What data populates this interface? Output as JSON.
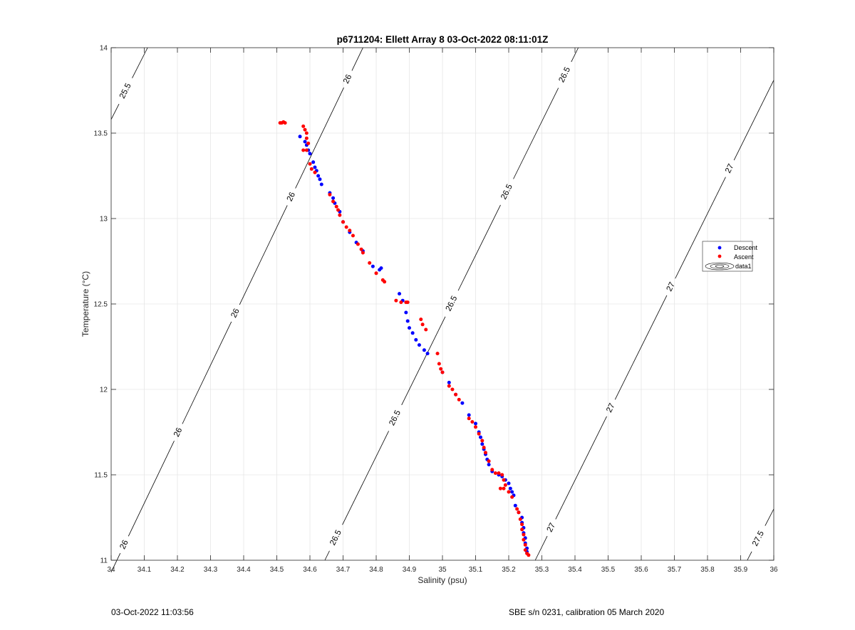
{
  "footer": {
    "left": "03-Oct-2022 11:03:56",
    "right": "SBE s/n 0231, calibration 05 March 2020"
  },
  "chart_data": {
    "type": "scatter",
    "title": "p6711204: Ellett Array 8 03-Oct-2022 08:11:01Z",
    "xlabel": "Salinity (psu)",
    "ylabel": "Temperature (°C)",
    "xlim": [
      34,
      36
    ],
    "ylim": [
      11,
      14
    ],
    "xticks": [
      "34",
      "34.1",
      "34.2",
      "34.3",
      "34.4",
      "34.5",
      "34.6",
      "34.7",
      "34.8",
      "34.9",
      "35",
      "35.1",
      "35.2",
      "35.3",
      "35.4",
      "35.5",
      "35.6",
      "35.7",
      "35.8",
      "35.9",
      "36"
    ],
    "yticks": [
      "11",
      "11.5",
      "12",
      "12.5",
      "13",
      "13.5",
      "14"
    ],
    "grid": true,
    "legend_placement": "right",
    "legend": [
      {
        "label": "Descent",
        "color": "#0000ff",
        "kind": "dot"
      },
      {
        "label": "Ascent",
        "color": "#ff0000",
        "kind": "dot"
      },
      {
        "label": "data1",
        "color": "#000000",
        "kind": "contour"
      }
    ],
    "isopycnals": [
      {
        "level": "25.5",
        "points": [
          [
            34.0,
            13.58
          ],
          [
            34.11,
            14.0
          ]
        ],
        "labels": [
          [
            34.04,
            13.75
          ]
        ]
      },
      {
        "level": "26",
        "points": [
          [
            34.0,
            10.93
          ],
          [
            34.76,
            14.0
          ]
        ],
        "labels": [
          [
            34.03,
            11.1
          ],
          [
            34.19,
            11.76
          ],
          [
            34.36,
            12.46
          ],
          [
            34.53,
            13.14
          ],
          [
            34.71,
            13.82
          ]
        ]
      },
      {
        "level": "26.5",
        "points": [
          [
            34.645,
            11.0
          ],
          [
            35.41,
            14.0
          ]
        ],
        "labels": [
          [
            34.68,
            11.13
          ],
          [
            34.86,
            11.83
          ],
          [
            35.03,
            12.5
          ],
          [
            35.19,
            13.16
          ],
          [
            35.37,
            13.84
          ]
        ]
      },
      {
        "level": "27",
        "points": [
          [
            35.28,
            11.0
          ],
          [
            36.0,
            13.81
          ]
        ],
        "labels": [
          [
            35.34,
            11.18
          ],
          [
            35.52,
            11.88
          ],
          [
            35.7,
            12.59
          ],
          [
            35.88,
            13.28
          ]
        ]
      },
      {
        "level": "27.5",
        "points": [
          [
            35.92,
            11.0
          ],
          [
            36.0,
            11.3
          ]
        ],
        "labels": [
          [
            35.96,
            11.12
          ]
        ]
      }
    ],
    "series": [
      {
        "name": "Descent",
        "color": "#0000ff",
        "points": [
          [
            34.57,
            13.48
          ],
          [
            34.585,
            13.45
          ],
          [
            34.59,
            13.43
          ],
          [
            34.595,
            13.4
          ],
          [
            34.6,
            13.38
          ],
          [
            34.61,
            13.33
          ],
          [
            34.615,
            13.3
          ],
          [
            34.62,
            13.28
          ],
          [
            34.625,
            13.25
          ],
          [
            34.63,
            13.23
          ],
          [
            34.635,
            13.2
          ],
          [
            34.66,
            13.15
          ],
          [
            34.67,
            13.12
          ],
          [
            34.675,
            13.09
          ],
          [
            34.69,
            13.04
          ],
          [
            34.7,
            12.98
          ],
          [
            34.72,
            12.92
          ],
          [
            34.74,
            12.86
          ],
          [
            34.76,
            12.81
          ],
          [
            34.79,
            12.72
          ],
          [
            34.81,
            12.7
          ],
          [
            34.815,
            12.71
          ],
          [
            34.87,
            12.56
          ],
          [
            34.88,
            12.52
          ],
          [
            34.89,
            12.45
          ],
          [
            34.895,
            12.4
          ],
          [
            34.9,
            12.36
          ],
          [
            34.91,
            12.33
          ],
          [
            34.92,
            12.29
          ],
          [
            34.93,
            12.26
          ],
          [
            34.945,
            12.23
          ],
          [
            34.955,
            12.21
          ],
          [
            35.0,
            12.1
          ],
          [
            35.02,
            12.04
          ],
          [
            35.04,
            11.97
          ],
          [
            35.06,
            11.92
          ],
          [
            35.08,
            11.85
          ],
          [
            35.1,
            11.8
          ],
          [
            35.11,
            11.75
          ],
          [
            35.115,
            11.72
          ],
          [
            35.12,
            11.68
          ],
          [
            35.125,
            11.65
          ],
          [
            35.13,
            11.62
          ],
          [
            35.135,
            11.59
          ],
          [
            35.14,
            11.56
          ],
          [
            35.15,
            11.52
          ],
          [
            35.17,
            11.5
          ],
          [
            35.18,
            11.49
          ],
          [
            35.19,
            11.47
          ],
          [
            35.2,
            11.45
          ],
          [
            35.205,
            11.42
          ],
          [
            35.21,
            11.4
          ],
          [
            35.215,
            11.38
          ],
          [
            35.22,
            11.32
          ],
          [
            35.23,
            11.28
          ],
          [
            35.24,
            11.25
          ],
          [
            35.24,
            11.22
          ],
          [
            35.245,
            11.19
          ],
          [
            35.245,
            11.16
          ],
          [
            35.25,
            11.13
          ],
          [
            35.25,
            11.1
          ],
          [
            35.255,
            11.07
          ],
          [
            35.255,
            11.05
          ]
        ]
      },
      {
        "name": "Ascent",
        "color": "#ff0000",
        "points": [
          [
            34.51,
            13.56
          ],
          [
            34.515,
            13.56
          ],
          [
            34.52,
            13.565
          ],
          [
            34.525,
            13.56
          ],
          [
            34.58,
            13.54
          ],
          [
            34.585,
            13.52
          ],
          [
            34.59,
            13.5
          ],
          [
            34.59,
            13.47
          ],
          [
            34.595,
            13.44
          ],
          [
            34.58,
            13.4
          ],
          [
            34.59,
            13.4
          ],
          [
            34.6,
            13.32
          ],
          [
            34.605,
            13.29
          ],
          [
            34.615,
            13.27
          ],
          [
            34.66,
            13.14
          ],
          [
            34.67,
            13.1
          ],
          [
            34.68,
            13.07
          ],
          [
            34.685,
            13.05
          ],
          [
            34.69,
            13.02
          ],
          [
            34.7,
            12.98
          ],
          [
            34.71,
            12.95
          ],
          [
            34.72,
            12.93
          ],
          [
            34.73,
            12.9
          ],
          [
            34.745,
            12.85
          ],
          [
            34.755,
            12.82
          ],
          [
            34.76,
            12.8
          ],
          [
            34.78,
            12.74
          ],
          [
            34.8,
            12.68
          ],
          [
            34.82,
            12.64
          ],
          [
            34.825,
            12.63
          ],
          [
            34.86,
            12.52
          ],
          [
            34.875,
            12.51
          ],
          [
            34.89,
            12.51
          ],
          [
            34.895,
            12.51
          ],
          [
            34.935,
            12.41
          ],
          [
            34.94,
            12.38
          ],
          [
            34.95,
            12.35
          ],
          [
            34.985,
            12.21
          ],
          [
            34.99,
            12.15
          ],
          [
            34.995,
            12.12
          ],
          [
            35.0,
            12.1
          ],
          [
            35.02,
            12.02
          ],
          [
            35.03,
            12.0
          ],
          [
            35.04,
            11.97
          ],
          [
            35.05,
            11.94
          ],
          [
            35.08,
            11.83
          ],
          [
            35.09,
            11.81
          ],
          [
            35.1,
            11.78
          ],
          [
            35.11,
            11.74
          ],
          [
            35.12,
            11.7
          ],
          [
            35.125,
            11.66
          ],
          [
            35.13,
            11.63
          ],
          [
            35.14,
            11.58
          ],
          [
            35.15,
            11.53
          ],
          [
            35.16,
            11.51
          ],
          [
            35.17,
            11.51
          ],
          [
            35.18,
            11.5
          ],
          [
            35.185,
            11.47
          ],
          [
            35.19,
            11.44
          ],
          [
            35.175,
            11.42
          ],
          [
            35.185,
            11.42
          ],
          [
            35.2,
            11.4
          ],
          [
            35.21,
            11.37
          ],
          [
            35.225,
            11.3
          ],
          [
            35.23,
            11.28
          ],
          [
            35.235,
            11.24
          ],
          [
            35.24,
            11.21
          ],
          [
            35.24,
            11.18
          ],
          [
            35.245,
            11.15
          ],
          [
            35.245,
            11.12
          ],
          [
            35.25,
            11.09
          ],
          [
            35.25,
            11.06
          ],
          [
            35.255,
            11.04
          ],
          [
            35.26,
            11.03
          ]
        ]
      }
    ]
  }
}
